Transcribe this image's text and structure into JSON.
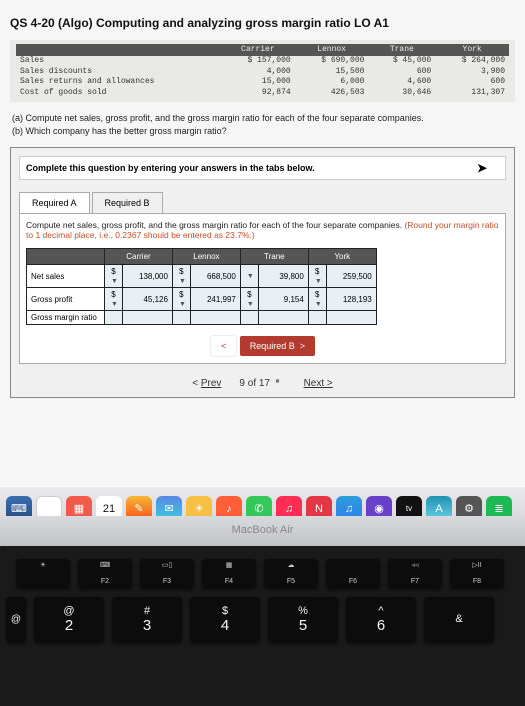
{
  "title": "QS 4-20 (Algo) Computing and analyzing gross margin ratio LO A1",
  "upper": {
    "headers": [
      "",
      "Carrier",
      "Lennox",
      "Trane",
      "York"
    ],
    "rows": [
      {
        "label": "Sales",
        "vals": [
          "$ 157,000",
          "$ 690,000",
          "$ 45,000",
          "$ 264,000"
        ]
      },
      {
        "label": "Sales discounts",
        "vals": [
          "4,000",
          "15,500",
          "600",
          "3,900"
        ]
      },
      {
        "label": "Sales returns and allowances",
        "vals": [
          "15,000",
          "6,000",
          "4,600",
          "600"
        ]
      },
      {
        "label": "Cost of goods sold",
        "vals": [
          "92,874",
          "426,503",
          "30,646",
          "131,307"
        ]
      }
    ]
  },
  "q_a": "(a) Compute net sales, gross profit, and the gross margin ratio for each of the four separate companies.",
  "q_b": "(b) Which company has the better gross margin ratio?",
  "instr": "Complete this question by entering your answers in the tabs below.",
  "tabs": {
    "a": "Required A",
    "b": "Required B"
  },
  "tab_instr_1": "Compute net sales, gross profit, and the gross margin ratio for each of the four separate companies. ",
  "tab_instr_2": "(Round your margin ratio to 1 decimal place, i.e., 0.2367 should be entered as 23.7%.)",
  "ans": {
    "headers": [
      "",
      "Carrier",
      "Lennox",
      "Trane",
      "York"
    ],
    "rows": [
      {
        "label": "Net sales",
        "c": "$",
        "cv": "138,000",
        "l": "$",
        "lv": "668,500",
        "t": "",
        "tv": "39,800",
        "y": "$",
        "yv": "259,500"
      },
      {
        "label": "Gross profit",
        "c": "$",
        "cv": "45,126",
        "l": "$",
        "lv": "241,997",
        "t": "$",
        "tv": "9,154",
        "y": "$",
        "yv": "128,193"
      },
      {
        "label": "Gross margin ratio",
        "c": "",
        "cv": "",
        "l": "",
        "lv": "",
        "t": "",
        "tv": "",
        "y": "",
        "yv": ""
      }
    ]
  },
  "req_b_btn": "Required B",
  "prev": "Prev",
  "count": "9 of 17",
  "next": "Next",
  "bezel": "MacBook Air",
  "dock": {
    "cal_day": "21",
    "tv": "tv",
    "icons": [
      {
        "bg": "linear-gradient(#3a6fb0,#234a7a)",
        "glyph": "⌨"
      },
      {
        "bg": "#ffffff",
        "glyph": "",
        "border": "1px solid #ccc"
      },
      {
        "bg": "#f25b4c",
        "glyph": "▦"
      },
      {
        "bg": "#ffffff",
        "glyph": "21",
        "color": "#111"
      },
      {
        "bg": "linear-gradient(#f7b733,#fc4a1a)",
        "glyph": "✎"
      },
      {
        "bg": "linear-gradient(#5b86e5,#36d1dc)",
        "glyph": "✉"
      },
      {
        "bg": "#f5c043",
        "glyph": "☀"
      },
      {
        "bg": "#ff5e3a",
        "glyph": "♪"
      },
      {
        "bg": "#34c759",
        "glyph": "✆"
      },
      {
        "bg": "#ff2d55",
        "glyph": "♫"
      },
      {
        "bg": "#e23744",
        "glyph": "N"
      },
      {
        "bg": "linear-gradient(#2d9cdb,#2f80ed)",
        "glyph": "♫"
      },
      {
        "bg": "#6a40c9",
        "glyph": "◉"
      },
      {
        "bg": "#111",
        "glyph": "tv",
        "fs": "8px"
      },
      {
        "bg": "linear-gradient(#2193b0,#6dd5ed)",
        "glyph": "A"
      },
      {
        "bg": "#555",
        "glyph": "⚙"
      },
      {
        "bg": "#1db954",
        "glyph": "≣"
      }
    ]
  },
  "fnrow": [
    {
      "g": "☀",
      "l": ""
    },
    {
      "g": "⌨",
      "l": "F2"
    },
    {
      "g": "▭▯",
      "l": "F3"
    },
    {
      "g": "▦",
      "l": "F4"
    },
    {
      "g": "☁",
      "l": "F5"
    },
    {
      "g": "",
      "l": "F6"
    },
    {
      "g": "◃◃",
      "l": "F7"
    },
    {
      "g": "▷II",
      "l": "F8"
    }
  ],
  "numrow": [
    {
      "t": "@",
      "b": "2"
    },
    {
      "t": "#",
      "b": "3"
    },
    {
      "t": "$",
      "b": "4"
    },
    {
      "t": "%",
      "b": "5"
    },
    {
      "t": "^",
      "b": "6"
    },
    {
      "t": "&",
      "b": ""
    }
  ]
}
